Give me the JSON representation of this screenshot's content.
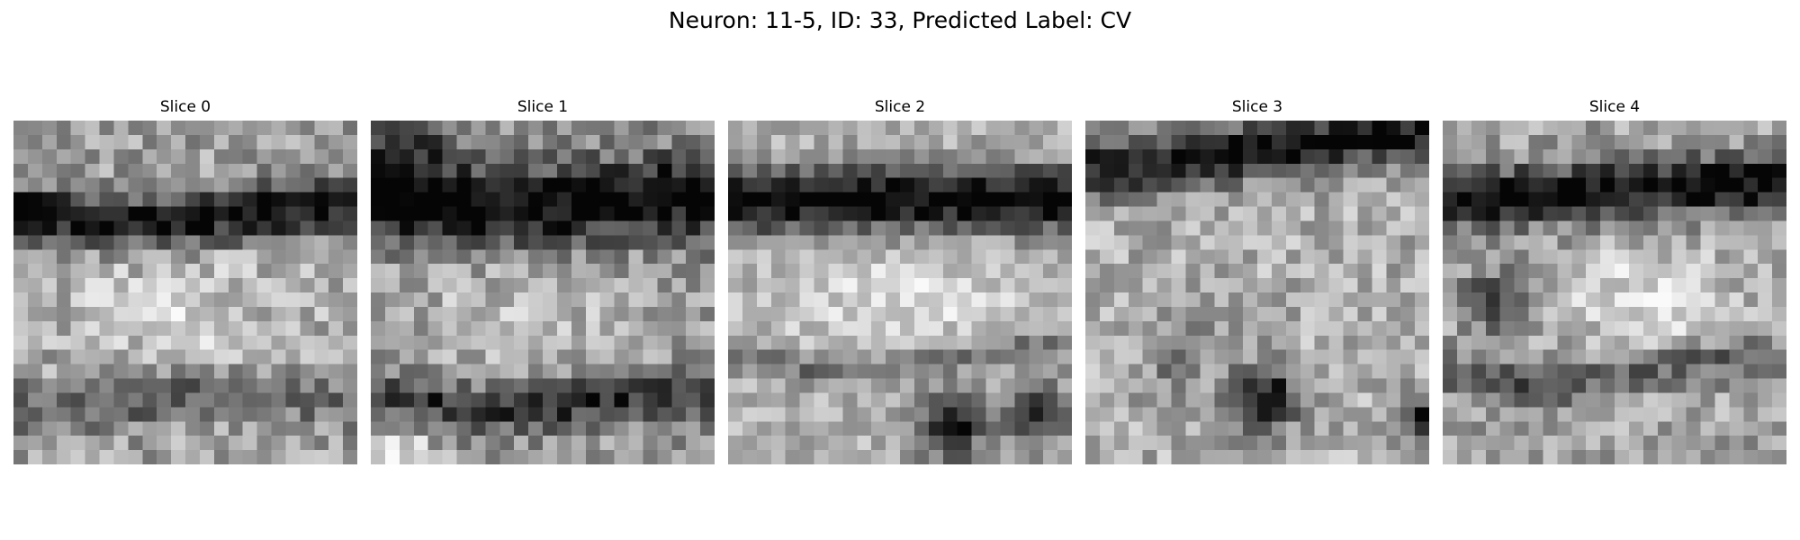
{
  "figure": {
    "suptitle": "Neuron: 11-5, ID: 33, Predicted Label: CV",
    "colormap": "gray",
    "grid_size": 24,
    "slices": [
      {
        "title": "Slice 0"
      },
      {
        "title": "Slice 1"
      },
      {
        "title": "Slice 2"
      },
      {
        "title": "Slice 3"
      },
      {
        "title": "Slice 4"
      }
    ]
  }
}
